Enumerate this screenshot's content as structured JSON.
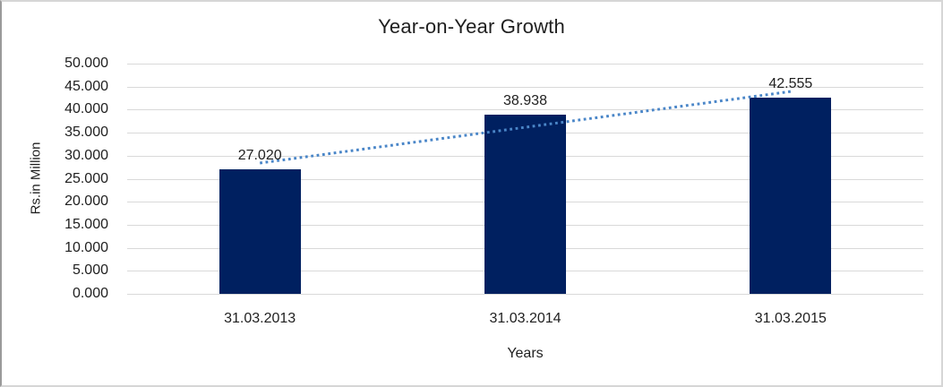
{
  "chart_data": {
    "type": "bar",
    "title": "Year-on-Year Growth",
    "categories": [
      "31.03.2013",
      "31.03.2014",
      "31.03.2015"
    ],
    "values": [
      27.02,
      38.938,
      42.555
    ],
    "data_labels": [
      "27.020",
      "38.938",
      "42.555"
    ],
    "xlabel": "Years",
    "ylabel": "Rs.in Million",
    "ylim": [
      0,
      50
    ],
    "ytick_step": 5,
    "ytick_labels": [
      "0.000",
      "5.000",
      "10.000",
      "15.000",
      "20.000",
      "25.000",
      "30.000",
      "35.000",
      "40.000",
      "45.000",
      "50.000"
    ],
    "grid": true,
    "legend": "none",
    "bar_color": "#002060",
    "gridline_color": "#d9d9d9",
    "trendline": {
      "type": "linear",
      "style": "dotted",
      "color": "#4a86c8"
    }
  }
}
